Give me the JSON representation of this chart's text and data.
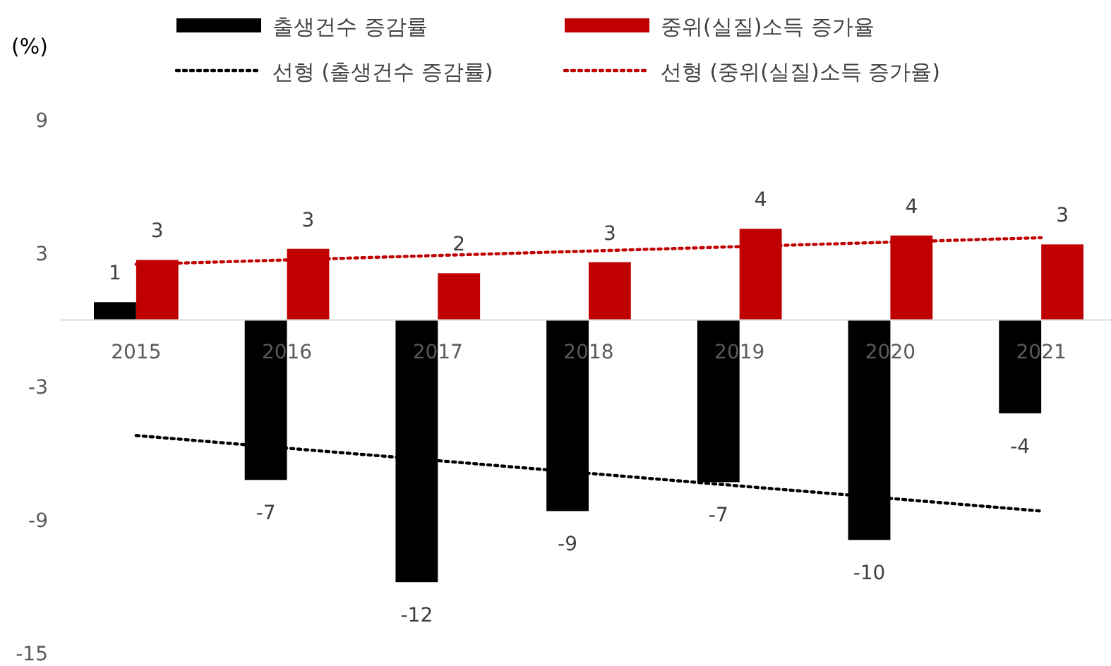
{
  "chart_data": {
    "type": "bar",
    "ylabel": "(%)",
    "categories": [
      "2015",
      "2016",
      "2017",
      "2018",
      "2019",
      "2020",
      "2021"
    ],
    "ylim": [
      -15,
      9
    ],
    "yticks": [
      9,
      3,
      -3,
      -9,
      -15
    ],
    "grid": false,
    "legend": "top",
    "series": [
      {
        "name": "출생건수 증감률",
        "color": "#000000",
        "values": [
          0.8,
          -7.2,
          -11.8,
          -8.6,
          -7.3,
          -9.9,
          -4.2
        ],
        "value_labels": [
          "1",
          "-7",
          "-12",
          "-9",
          "-7",
          "-10",
          "-4"
        ]
      },
      {
        "name": "중위(실질)소득 증가율",
        "color": "#c00000",
        "values": [
          2.7,
          3.2,
          2.1,
          2.6,
          4.1,
          3.8,
          3.4
        ],
        "value_labels": [
          "3",
          "3",
          "2",
          "3",
          "4",
          "4",
          "3"
        ]
      },
      {
        "name": "선형 (출생건수 증감률)",
        "type": "line",
        "line_style": "dotted",
        "color": "#000000",
        "values": [
          -5.2,
          -5.77,
          -6.33,
          -6.9,
          -7.47,
          -8.03,
          -8.6
        ]
      },
      {
        "name": "선형 (중위(실질)소득 증가율)",
        "type": "line",
        "line_style": "dotted",
        "color": "#c00000",
        "values": [
          2.5,
          2.7,
          2.9,
          3.1,
          3.3,
          3.5,
          3.7
        ]
      }
    ]
  }
}
